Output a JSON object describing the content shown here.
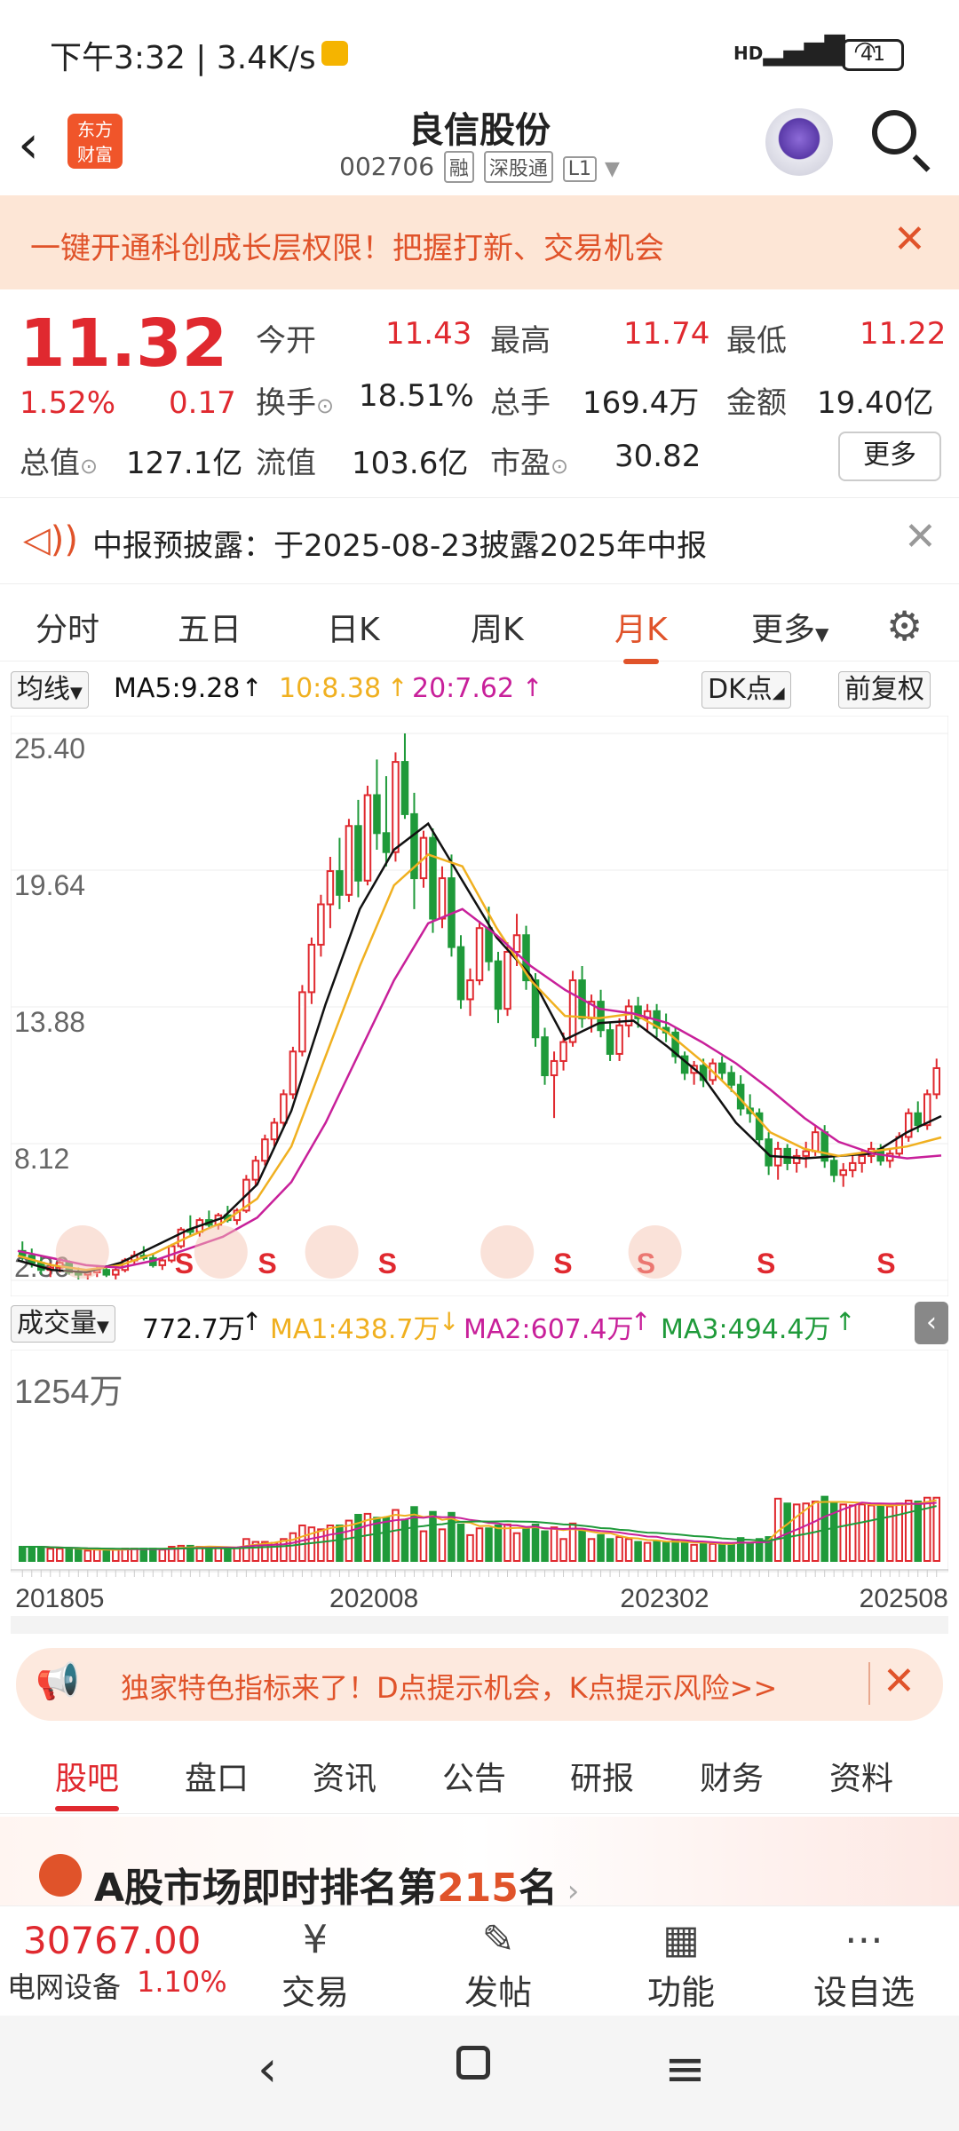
{
  "status_bar": {
    "time": "下午3:32 | 3.4K/s",
    "signal": "HD",
    "battery": "41"
  },
  "header": {
    "logo_text_1": "东方",
    "logo_text_2": "财富",
    "stock_name": "良信股份",
    "stock_code": "002706",
    "tags": [
      "融",
      "深股通",
      "L1"
    ]
  },
  "banner": {
    "text": "一键开通科创成长层权限！把握打新、交易机会"
  },
  "quote": {
    "price": "11.32",
    "change_pct": "1.52%",
    "change": "0.17",
    "fields": [
      {
        "label": "今开",
        "value": "11.43",
        "color": "#e0292f"
      },
      {
        "label": "最高",
        "value": "11.74",
        "color": "#e0292f"
      },
      {
        "label": "最低",
        "value": "11.22",
        "color": "#e0292f"
      },
      {
        "label": "换手",
        "value": "18.51%",
        "color": "#222222"
      },
      {
        "label": "总手",
        "value": "169.4万",
        "color": "#222222"
      },
      {
        "label": "金额",
        "value": "19.40亿",
        "color": "#222222"
      },
      {
        "label": "总值",
        "value": "127.1亿",
        "color": "#222222"
      },
      {
        "label": "流值",
        "value": "103.6亿",
        "color": "#222222"
      },
      {
        "label": "市盈",
        "value": "30.82",
        "color": "#222222"
      }
    ],
    "more_label": "更多"
  },
  "notice": {
    "text": "中报预披露：于2025-08-23披露2025年中报"
  },
  "period_tabs": [
    "分时",
    "五日",
    "日K",
    "周K",
    "月K",
    "更多"
  ],
  "active_period": "月K",
  "chart_legend": {
    "ma_selector": "均线",
    "ma5": "MA5:9.28",
    "ma10": "10:8.38",
    "ma20": "20:7.62",
    "dk_label": "DK点",
    "adjust_label": "前复权"
  },
  "volume_legend": {
    "selector": "成交量",
    "vol": "772.7万",
    "ma1": "MA1:438.7万",
    "ma2": "MA2:607.4万",
    "ma3": "MA3:494.4万",
    "max_label": "1254万"
  },
  "colors": {
    "up": "#e0292f",
    "down": "#1f9a3a",
    "ma5": "#111111",
    "ma10": "#f0b020",
    "ma20": "#c8209a",
    "accent": "#e0532a"
  },
  "chart_data": {
    "type": "candlestick",
    "title": "",
    "y_ticks": [
      "25.40",
      "19.64",
      "13.88",
      "8.12",
      "2.36"
    ],
    "x_ticks": [
      "201805",
      "202008",
      "202302",
      "202508"
    ],
    "ylim": [
      2.36,
      25.4
    ],
    "marker": "S",
    "candles_ohlc": [
      [
        3.6,
        4.0,
        3.2,
        3.4
      ],
      [
        3.4,
        3.7,
        2.9,
        3.1
      ],
      [
        3.1,
        3.4,
        2.6,
        2.8
      ],
      [
        2.8,
        3.1,
        2.5,
        2.9
      ],
      [
        2.9,
        3.3,
        2.7,
        3.1
      ],
      [
        3.1,
        3.2,
        2.6,
        2.7
      ],
      [
        2.7,
        2.9,
        2.4,
        2.6
      ],
      [
        2.6,
        2.8,
        2.4,
        2.7
      ],
      [
        2.7,
        3.0,
        2.5,
        2.8
      ],
      [
        2.8,
        3.0,
        2.5,
        2.6
      ],
      [
        2.6,
        2.9,
        2.4,
        2.8
      ],
      [
        2.8,
        3.3,
        2.7,
        3.2
      ],
      [
        3.2,
        3.6,
        3.0,
        3.4
      ],
      [
        3.4,
        3.8,
        3.2,
        3.3
      ],
      [
        3.3,
        3.5,
        2.9,
        3.0
      ],
      [
        3.0,
        3.3,
        2.8,
        3.2
      ],
      [
        3.2,
        3.9,
        3.1,
        3.8
      ],
      [
        3.8,
        4.6,
        3.7,
        4.5
      ],
      [
        4.5,
        5.1,
        4.2,
        4.4
      ],
      [
        4.4,
        5.0,
        4.2,
        4.9
      ],
      [
        4.9,
        5.3,
        4.6,
        4.7
      ],
      [
        4.7,
        5.2,
        4.5,
        5.1
      ],
      [
        5.1,
        5.5,
        4.8,
        4.9
      ],
      [
        4.9,
        5.4,
        4.7,
        5.3
      ],
      [
        5.3,
        6.8,
        5.2,
        6.6
      ],
      [
        6.6,
        7.6,
        6.3,
        7.4
      ],
      [
        7.4,
        8.5,
        7.2,
        8.3
      ],
      [
        8.3,
        9.2,
        8.0,
        9.0
      ],
      [
        9.0,
        10.4,
        8.8,
        10.2
      ],
      [
        10.2,
        12.2,
        10.0,
        12.0
      ],
      [
        12.0,
        14.8,
        11.8,
        14.5
      ],
      [
        14.5,
        16.8,
        14.0,
        16.5
      ],
      [
        16.5,
        18.6,
        16.0,
        18.2
      ],
      [
        18.2,
        20.2,
        17.2,
        19.6
      ],
      [
        19.6,
        21.0,
        18.0,
        18.6
      ],
      [
        18.6,
        21.8,
        18.3,
        21.5
      ],
      [
        21.5,
        22.6,
        18.5,
        19.2
      ],
      [
        19.2,
        23.2,
        19.0,
        22.8
      ],
      [
        22.8,
        24.3,
        20.5,
        21.2
      ],
      [
        21.2,
        23.6,
        19.8,
        20.4
      ],
      [
        20.4,
        24.6,
        20.0,
        24.2
      ],
      [
        24.2,
        25.4,
        21.8,
        22.0
      ],
      [
        22.0,
        22.9,
        18.0,
        19.3
      ],
      [
        19.3,
        21.3,
        18.9,
        21.0
      ],
      [
        21.0,
        21.4,
        17.0,
        17.6
      ],
      [
        17.6,
        19.8,
        17.2,
        19.3
      ],
      [
        19.3,
        20.3,
        16.0,
        16.4
      ],
      [
        16.4,
        16.9,
        13.8,
        14.2
      ],
      [
        14.2,
        15.5,
        13.5,
        15.0
      ],
      [
        15.0,
        17.5,
        14.8,
        17.2
      ],
      [
        17.2,
        18.1,
        15.4,
        15.8
      ],
      [
        15.8,
        16.2,
        13.2,
        13.8
      ],
      [
        13.8,
        16.6,
        13.5,
        16.2
      ],
      [
        16.2,
        17.8,
        15.6,
        16.9
      ],
      [
        16.9,
        17.3,
        14.6,
        15.0
      ],
      [
        15.0,
        15.3,
        12.2,
        12.6
      ],
      [
        12.6,
        13.0,
        10.6,
        11.0
      ],
      [
        11.0,
        12.0,
        9.2,
        11.6
      ],
      [
        11.6,
        12.8,
        11.2,
        12.4
      ],
      [
        12.4,
        15.4,
        12.2,
        15.0
      ],
      [
        15.0,
        15.6,
        13.0,
        13.4
      ],
      [
        13.4,
        14.4,
        12.8,
        14.1
      ],
      [
        14.1,
        14.6,
        12.6,
        12.9
      ],
      [
        12.9,
        13.2,
        11.6,
        11.9
      ],
      [
        11.9,
        13.4,
        11.6,
        13.1
      ],
      [
        13.1,
        14.2,
        12.6,
        13.9
      ],
      [
        13.9,
        14.3,
        13.0,
        13.4
      ],
      [
        13.4,
        14.0,
        12.8,
        13.7
      ],
      [
        13.7,
        14.0,
        12.6,
        13.0
      ],
      [
        13.0,
        13.6,
        12.4,
        12.8
      ],
      [
        12.8,
        13.0,
        11.5,
        11.8
      ],
      [
        11.8,
        12.0,
        10.8,
        11.1
      ],
      [
        11.1,
        11.6,
        10.6,
        11.4
      ],
      [
        11.4,
        11.7,
        10.5,
        10.8
      ],
      [
        10.8,
        11.7,
        10.6,
        11.5
      ],
      [
        11.5,
        11.8,
        10.8,
        11.1
      ],
      [
        11.1,
        11.4,
        10.3,
        10.6
      ],
      [
        10.6,
        11.0,
        9.3,
        9.6
      ],
      [
        9.6,
        10.2,
        9.0,
        9.4
      ],
      [
        9.4,
        9.6,
        8.0,
        8.3
      ],
      [
        8.3,
        8.6,
        6.8,
        7.2
      ],
      [
        7.2,
        8.2,
        6.6,
        7.9
      ],
      [
        7.9,
        8.1,
        7.0,
        7.3
      ],
      [
        7.3,
        7.9,
        6.9,
        7.6
      ],
      [
        7.6,
        8.2,
        7.1,
        7.8
      ],
      [
        7.8,
        8.9,
        7.6,
        8.6
      ],
      [
        8.6,
        8.9,
        7.1,
        7.4
      ],
      [
        7.4,
        7.6,
        6.5,
        6.8
      ],
      [
        6.8,
        7.3,
        6.3,
        7.0
      ],
      [
        7.0,
        7.6,
        6.7,
        7.3
      ],
      [
        7.3,
        7.9,
        6.9,
        7.6
      ],
      [
        7.6,
        8.2,
        7.3,
        7.9
      ],
      [
        7.9,
        8.1,
        7.2,
        7.4
      ],
      [
        7.4,
        7.9,
        7.1,
        7.7
      ],
      [
        7.7,
        8.6,
        7.5,
        8.4
      ],
      [
        8.4,
        9.6,
        8.2,
        9.4
      ],
      [
        9.4,
        9.9,
        8.6,
        8.9
      ],
      [
        8.9,
        10.4,
        8.7,
        10.2
      ],
      [
        10.2,
        11.7,
        10.0,
        11.3
      ]
    ],
    "ma_series": [
      {
        "name": "MA5",
        "values_sampled": [
          3.2,
          2.8,
          2.7,
          3.1,
          3.8,
          4.5,
          5.0,
          6.4,
          9.5,
          14.0,
          18.0,
          20.5,
          21.6,
          19.2,
          16.8,
          15.2,
          12.5,
          13.2,
          13.3,
          12.2,
          11.0,
          9.0,
          7.6,
          7.5,
          7.6,
          7.7,
          8.6,
          9.28
        ]
      },
      {
        "name": "MA10",
        "values_sampled": [
          3.4,
          3.0,
          2.8,
          3.0,
          3.5,
          4.2,
          4.8,
          5.8,
          8.0,
          11.8,
          15.6,
          19.0,
          20.3,
          19.8,
          17.2,
          15.0,
          13.5,
          13.4,
          13.6,
          12.8,
          11.6,
          10.2,
          8.6,
          7.9,
          7.6,
          7.8,
          8.0,
          8.38
        ]
      },
      {
        "name": "MA20",
        "values_sampled": [
          3.6,
          3.3,
          3.0,
          2.9,
          3.2,
          3.7,
          4.2,
          5.0,
          6.5,
          9.0,
          12.0,
          15.0,
          17.4,
          18.0,
          16.9,
          15.6,
          14.6,
          13.8,
          13.6,
          13.2,
          12.4,
          11.5,
          10.4,
          9.2,
          8.2,
          7.7,
          7.5,
          7.62
        ]
      }
    ],
    "volume_ma": [
      "MA1",
      "MA2",
      "MA3"
    ]
  },
  "promo": {
    "text": "独家特色指标来了！D点提示机会，K点提示风险>>"
  },
  "bottom_tabs": [
    "股吧",
    "盘口",
    "资讯",
    "公告",
    "研报",
    "财务",
    "资料"
  ],
  "active_bottom_tab": "股吧",
  "rank": {
    "prefix": "A股市场即时排名第",
    "number": "215",
    "suffix": "名"
  },
  "index_box": {
    "value": "30767.00",
    "name": "电网设备",
    "pct": "1.10%"
  },
  "actions": [
    {
      "label": "交易",
      "icon": "trade-icon",
      "glyph": "¥"
    },
    {
      "label": "发帖",
      "icon": "edit-icon",
      "glyph": "✎"
    },
    {
      "label": "功能",
      "icon": "grid-icon",
      "glyph": "▦"
    },
    {
      "label": "设自选",
      "icon": "more-icon",
      "glyph": "⋯"
    }
  ]
}
